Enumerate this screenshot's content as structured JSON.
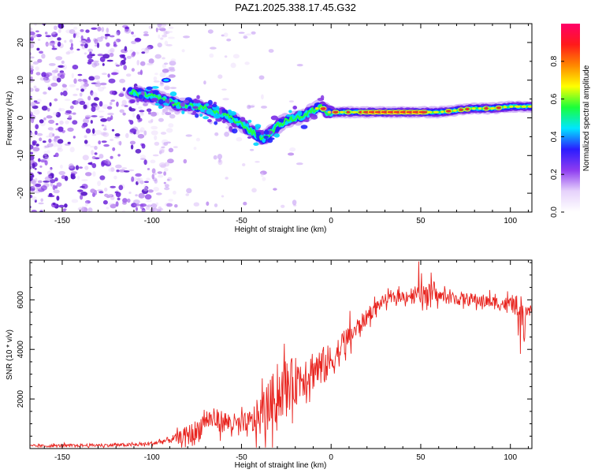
{
  "figure": {
    "title": "PAZ1.2025.338.17.45.G32"
  },
  "colors": {
    "snr_line": "#e8231e",
    "axis": "#000000",
    "dots": "#9a52e0"
  },
  "chart_data": [
    {
      "type": "heatmap",
      "name": "spectrogram",
      "xlabel": "Height of straight line (km)",
      "ylabel": "Frequency (Hz)",
      "xlim": [
        -168,
        112
      ],
      "ylim": [
        -25,
        25
      ],
      "xticks": [
        -150,
        -100,
        -50,
        0,
        50,
        100
      ],
      "yticks": [
        -20,
        -10,
        0,
        10,
        20
      ],
      "ridge": {
        "x": [
          -112,
          -105,
          -98,
          -92,
          -85,
          -80,
          -75,
          -70,
          -65,
          -60,
          -55,
          -50,
          -45,
          -42,
          -38,
          -35,
          -32,
          -28,
          -24,
          -20,
          -15,
          -10,
          -6,
          -2,
          0,
          10,
          20,
          30,
          40,
          50,
          60,
          70,
          80,
          90,
          100,
          108,
          112
        ],
        "y": [
          7,
          6,
          5.5,
          4.5,
          3.5,
          3.5,
          3,
          2.5,
          1.5,
          1,
          -0.5,
          -1.5,
          -3.5,
          -4.5,
          -5.5,
          -4.5,
          -3,
          -1.5,
          -0.5,
          0,
          0.5,
          2,
          3,
          1.5,
          1.5,
          1.5,
          1.5,
          1.5,
          1.5,
          1.5,
          1.5,
          2,
          2.5,
          2.5,
          3,
          3,
          3
        ],
        "peak_range_km": [
          20,
          52
        ]
      },
      "colorbar": {
        "label": "Normalized spectral amplitude",
        "range": [
          0,
          1
        ],
        "ticks": [
          "0.0",
          "0.2",
          "0.4",
          "0.6",
          "0.8"
        ],
        "stops": [
          "#ffffff",
          "#e6d2fb",
          "#8e3cf0",
          "#2a1cff",
          "#00e6ff",
          "#19ff3a",
          "#ffff00",
          "#ff8800",
          "#ff1a1a",
          "#ff0068"
        ]
      }
    },
    {
      "type": "line",
      "name": "snr",
      "xlabel": "Height of straight line (km)",
      "ylabel": "SNR (10 * v/v)",
      "xlim": [
        -168,
        112
      ],
      "ylim": [
        0,
        7600
      ],
      "xticks": [
        -150,
        -100,
        -50,
        0,
        50,
        100
      ],
      "yticks": [
        2000,
        4000,
        6000
      ],
      "envelope": {
        "x": [
          -168,
          -110,
          -100,
          -90,
          -85,
          -80,
          -75,
          -70,
          -60,
          -50,
          -45,
          -40,
          -35,
          -30,
          -25,
          -20,
          -15,
          -10,
          -5,
          0,
          5,
          10,
          15,
          20,
          25,
          30,
          40,
          50,
          55,
          60,
          70,
          80,
          90,
          100,
          105,
          108,
          112
        ],
        "mean": [
          100,
          150,
          200,
          350,
          450,
          550,
          650,
          1200,
          1100,
          900,
          1000,
          1300,
          1700,
          2200,
          2500,
          2700,
          3000,
          3200,
          3300,
          3500,
          4000,
          4500,
          4900,
          5300,
          5700,
          6000,
          6150,
          6250,
          6250,
          6150,
          6050,
          6000,
          5900,
          5800,
          5750,
          5700,
          5600
        ],
        "noise": [
          60,
          80,
          100,
          150,
          250,
          450,
          600,
          500,
          500,
          500,
          650,
          900,
          1100,
          1300,
          1200,
          1100,
          1000,
          950,
          900,
          800,
          700,
          600,
          450,
          350,
          300,
          250,
          250,
          500,
          450,
          300,
          300,
          300,
          300,
          350,
          500,
          600,
          300
        ]
      }
    }
  ]
}
